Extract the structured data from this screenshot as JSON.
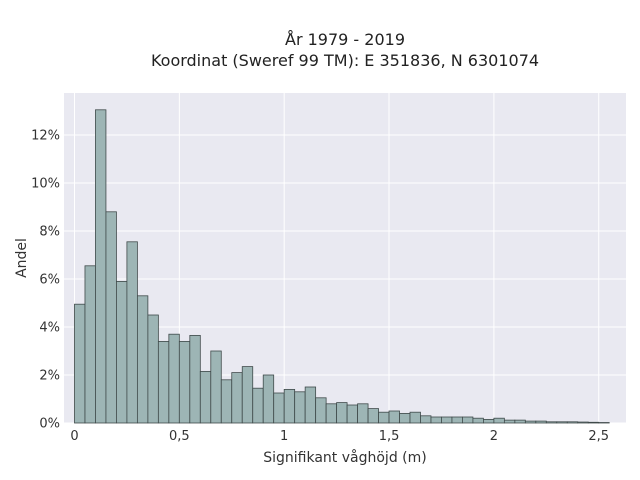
{
  "chart_data": {
    "type": "bar",
    "title_line1": "År 1979 - 2019",
    "title_line2": "Koordinat (Sweref 99 TM): E 351836, N 6301074",
    "xlabel": "Signifikant våghöjd (m)",
    "ylabel": "Andel",
    "xlim": [
      -0.05,
      2.63
    ],
    "ylim": [
      0,
      0.1375
    ],
    "grid": true,
    "x_ticks": [
      {
        "value": 0,
        "label": "0"
      },
      {
        "value": 0.5,
        "label": "0,5"
      },
      {
        "value": 1,
        "label": "1"
      },
      {
        "value": 1.5,
        "label": "1,5"
      },
      {
        "value": 2,
        "label": "2"
      },
      {
        "value": 2.5,
        "label": "2,5"
      }
    ],
    "y_ticks": [
      {
        "value": 0,
        "label": "0%"
      },
      {
        "value": 0.02,
        "label": "2%"
      },
      {
        "value": 0.04,
        "label": "4%"
      },
      {
        "value": 0.06,
        "label": "6%"
      },
      {
        "value": 0.08,
        "label": "8%"
      },
      {
        "value": 0.1,
        "label": "10%"
      },
      {
        "value": 0.12,
        "label": "12%"
      }
    ],
    "bin_start": 0.0,
    "bin_width": 0.05,
    "values": [
      0.0495,
      0.0655,
      0.1305,
      0.088,
      0.059,
      0.0755,
      0.053,
      0.045,
      0.034,
      0.037,
      0.034,
      0.0365,
      0.0215,
      0.03,
      0.018,
      0.021,
      0.0235,
      0.0145,
      0.02,
      0.0125,
      0.014,
      0.013,
      0.015,
      0.0105,
      0.008,
      0.0085,
      0.0075,
      0.008,
      0.006,
      0.0045,
      0.005,
      0.004,
      0.0045,
      0.003,
      0.0025,
      0.0025,
      0.0025,
      0.0025,
      0.002,
      0.0015,
      0.002,
      0.0012,
      0.0012,
      0.0008,
      0.0008,
      0.0005,
      0.0005,
      0.0005,
      0.0004,
      0.0003,
      0.0002
    ],
    "colors": {
      "bar_fill": "#9db5b5",
      "bar_stroke": "#3f4a4a",
      "plot_bg": "#e9e9f1",
      "grid": "#ffffff"
    }
  }
}
